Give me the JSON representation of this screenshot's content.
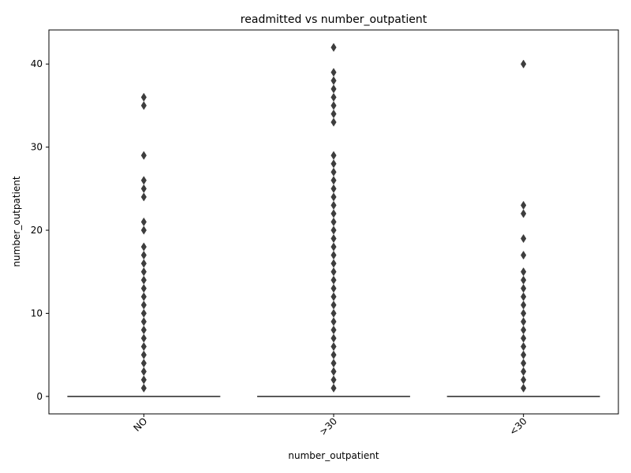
{
  "chart_data": {
    "type": "box",
    "title": "readmitted vs number_outpatient",
    "xlabel": "number_outpatient",
    "ylabel": "number_outpatient",
    "categories": [
      "NO",
      ">30",
      "<30"
    ],
    "y_ticks": [
      0,
      10,
      20,
      30,
      40
    ],
    "ylim": [
      -2.1,
      44.1
    ],
    "grid": false,
    "colors": {
      "box": "#3d3d3d",
      "axis": "#000000",
      "background": "#ffffff"
    },
    "boxes": [
      {
        "category": "NO",
        "q1": 0,
        "median": 0,
        "q3": 0,
        "whisker_low": 0,
        "whisker_high": 0,
        "outliers": [
          1,
          2,
          3,
          4,
          5,
          6,
          7,
          8,
          9,
          10,
          11,
          12,
          13,
          14,
          15,
          16,
          17,
          18,
          20,
          21,
          24,
          25,
          26,
          29,
          35,
          36
        ]
      },
      {
        "category": ">30",
        "q1": 0,
        "median": 0,
        "q3": 0,
        "whisker_low": 0,
        "whisker_high": 0,
        "outliers": [
          1,
          2,
          3,
          4,
          5,
          6,
          7,
          8,
          9,
          10,
          11,
          12,
          13,
          14,
          15,
          16,
          17,
          18,
          19,
          20,
          21,
          22,
          23,
          24,
          25,
          26,
          27,
          28,
          29,
          33,
          34,
          35,
          36,
          37,
          38,
          39,
          42
        ]
      },
      {
        "category": "<30",
        "q1": 0,
        "median": 0,
        "q3": 0,
        "whisker_low": 0,
        "whisker_high": 0,
        "outliers": [
          1,
          2,
          3,
          4,
          5,
          6,
          7,
          8,
          9,
          10,
          11,
          12,
          13,
          14,
          15,
          17,
          19,
          22,
          23,
          40
        ]
      }
    ]
  }
}
